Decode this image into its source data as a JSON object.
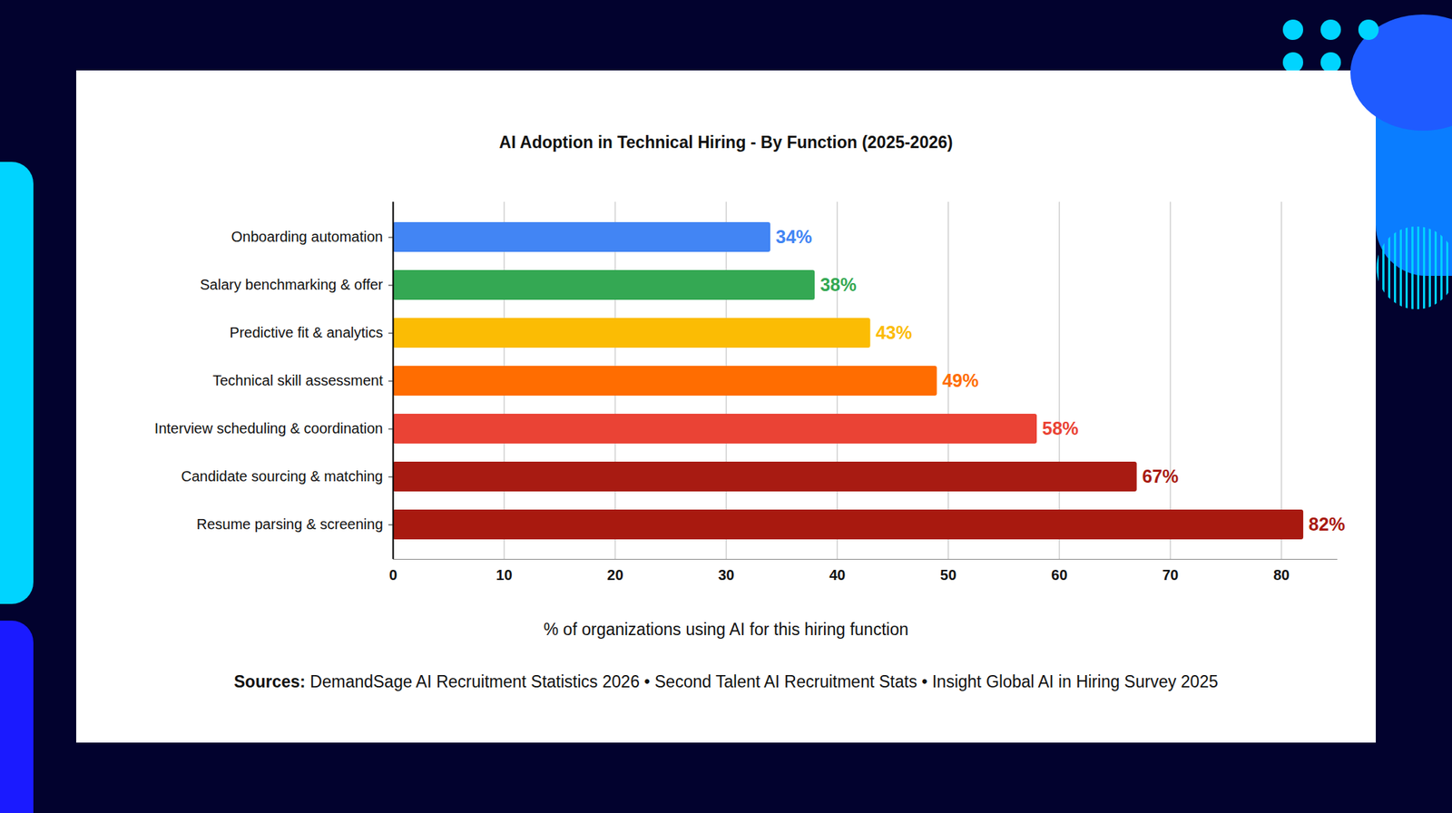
{
  "chart_data": {
    "type": "bar",
    "title": "AI Adoption in Technical Hiring - By Function (2025-2026)",
    "orientation": "horizontal",
    "categories": [
      "Onboarding automation",
      "Salary benchmarking & offer",
      "Predictive fit & analytics",
      "Technical skill assessment",
      "Interview scheduling & coordination",
      "Candidate sourcing & matching",
      "Resume parsing & screening"
    ],
    "values": [
      34,
      38,
      43,
      49,
      58,
      67,
      82
    ],
    "value_labels": [
      "34%",
      "38%",
      "43%",
      "49%",
      "58%",
      "67%",
      "82%"
    ],
    "colors": [
      "#4285f4",
      "#34a853",
      "#fbbc04",
      "#ff6d01",
      "#ea4335",
      "#a81b12",
      "#a8190f"
    ],
    "xlabel": "% of organizations using AI for this hiring function",
    "xlim": [
      0,
      85
    ],
    "xticks": [
      0,
      10,
      20,
      30,
      40,
      50,
      60,
      70,
      80
    ],
    "grid": true,
    "data_labels": true,
    "sources_label": "Sources:",
    "sources": "DemandSage AI Recruitment Statistics 2026 • Second Talent AI Recruitment Stats • Insight Global AI in Hiring Survey 2025"
  }
}
